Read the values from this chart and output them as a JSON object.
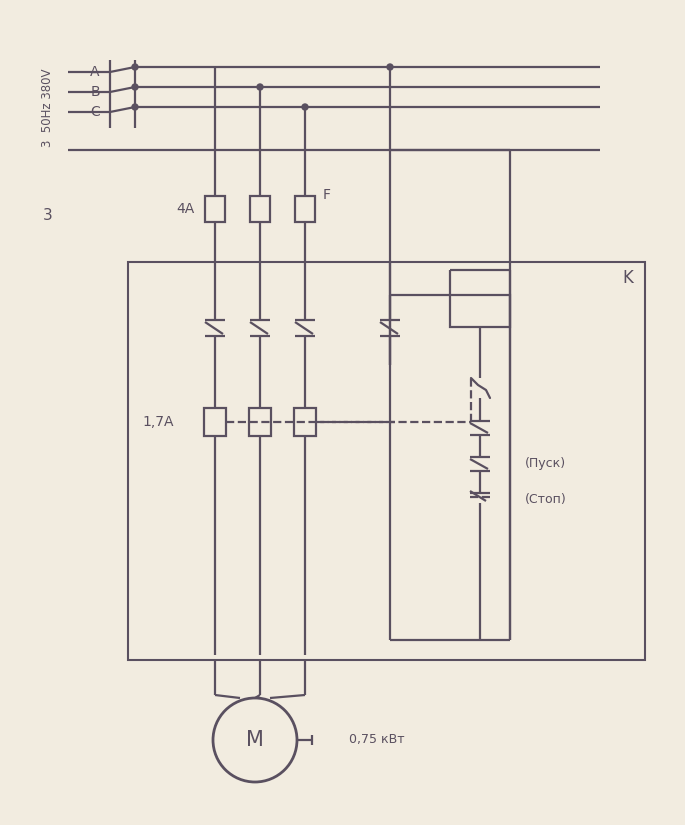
{
  "bg_color": "#f2ece0",
  "line_color": "#5a5060",
  "lw": 1.6,
  "label_freq": "3  50Hz 380V",
  "label_3": "3",
  "label_4A": "4A",
  "label_F": "F",
  "label_K": "K",
  "label_17A": "1,7A",
  "label_pusk": "(Пуск)",
  "label_stop": "(Стоп)",
  "label_motor": "M",
  "label_power": "0,75 кВт",
  "label_A": "A",
  "label_B": "B",
  "label_C": "C"
}
